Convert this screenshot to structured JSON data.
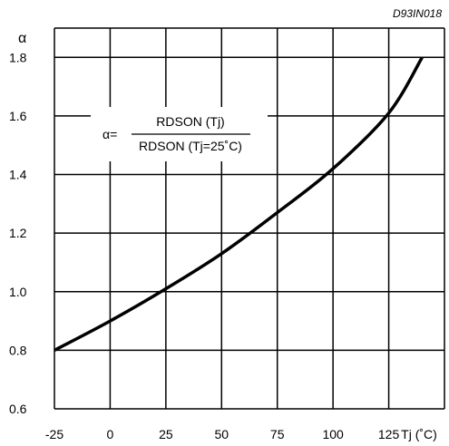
{
  "chart_data": {
    "type": "line",
    "figure_ref": "D93IN018",
    "ylabel": "α",
    "xlabel": "Tj (˚C)",
    "xlim": [
      -25,
      150
    ],
    "ylim": [
      0.6,
      1.9
    ],
    "x_ticks": [
      -25,
      0,
      25,
      50,
      75,
      100,
      125
    ],
    "x_tick_labels": [
      "-25",
      "0",
      "25",
      "50",
      "75",
      "100",
      "125"
    ],
    "y_ticks": [
      0.6,
      0.8,
      1.0,
      1.2,
      1.4,
      1.6,
      1.8
    ],
    "y_tick_labels": [
      "0.6",
      "0.8",
      "1.0",
      "1.2",
      "1.4",
      "1.6",
      "1.8"
    ],
    "grid": true,
    "annotation": {
      "prefix": "α=",
      "numerator": "RDSON (Tj)",
      "denominator": "RDSON (Tj=25˚C)"
    },
    "series": [
      {
        "x": [
          -25,
          0,
          25,
          50,
          75,
          100,
          125,
          140
        ],
        "y": [
          0.8,
          0.9,
          1.01,
          1.13,
          1.27,
          1.42,
          1.61,
          1.8
        ]
      }
    ]
  }
}
